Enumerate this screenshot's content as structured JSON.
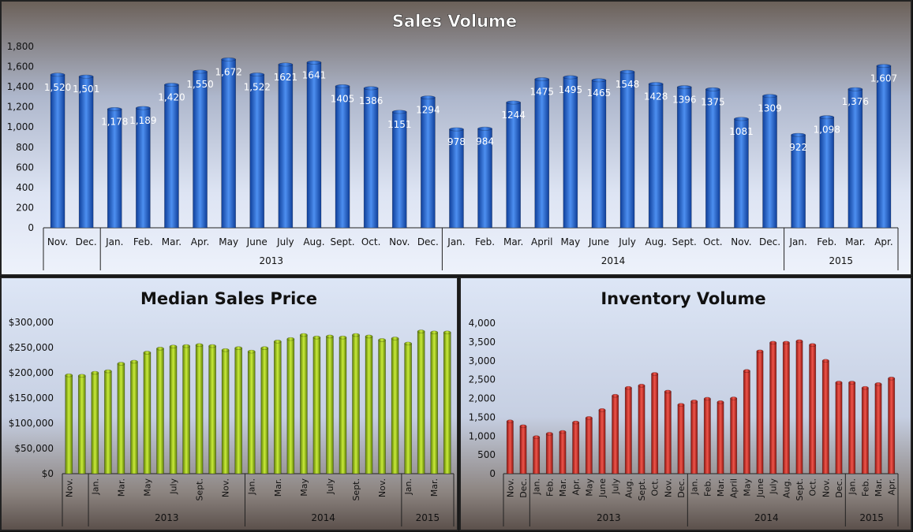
{
  "chart_data": [
    {
      "type": "bar",
      "title": "Sales Volume",
      "ylim": [
        0,
        1800
      ],
      "yticks": [
        "0",
        "200",
        "400",
        "600",
        "800",
        "1,000",
        "1,200",
        "1,400",
        "1,600",
        "1,800"
      ],
      "grid": false,
      "categories": [
        "Nov.",
        "Dec.",
        "Jan.",
        "Feb.",
        "Mar.",
        "Apr.",
        "May",
        "June",
        "July",
        "Aug.",
        "Sept.",
        "Oct.",
        "Nov.",
        "Dec.",
        "Jan.",
        "Feb.",
        "Mar.",
        "April",
        "May",
        "June",
        "July",
        "Aug.",
        "Sept.",
        "Oct.",
        "Nov.",
        "Dec.",
        "Jan.",
        "Feb.",
        "Mar.",
        "Apr."
      ],
      "values": [
        1520,
        1501,
        1178,
        1189,
        1420,
        1550,
        1672,
        1522,
        1621,
        1641,
        1405,
        1386,
        1151,
        1294,
        978,
        984,
        1244,
        1475,
        1495,
        1465,
        1548,
        1428,
        1396,
        1375,
        1081,
        1309,
        922,
        1098,
        1376,
        1607
      ],
      "data_labels": [
        "1,520",
        "1,501",
        "1,178",
        "1,189",
        "1,420",
        "1,550",
        "1,672",
        "1,522",
        "1621",
        "1641",
        "1405",
        "1386",
        "1151",
        "1294",
        "978",
        "984",
        "1244",
        "1475",
        "1495",
        "1465",
        "1548",
        "1428",
        "1396",
        "1375",
        "1081",
        "1309",
        "922",
        "1,098",
        "1,376",
        "1,607"
      ],
      "groups": [
        {
          "label": "",
          "count": 2
        },
        {
          "label": "2013",
          "count": 12
        },
        {
          "label": "2014",
          "count": 12
        },
        {
          "label": "2015",
          "count": 4
        }
      ],
      "bar_color": "#2f6fd6"
    },
    {
      "type": "bar",
      "title": "Median Sales Price",
      "ylim": [
        0,
        300000
      ],
      "yticks": [
        "$0",
        "$50,000",
        "$100,000",
        "$150,000",
        "$200,000",
        "$250,000",
        "$300,000"
      ],
      "grid": false,
      "categories": [
        "Nov.",
        "",
        "Jan.",
        "",
        "Mar.",
        "",
        "May",
        "",
        "July",
        "",
        "Sept.",
        "",
        "Nov.",
        "",
        "Jan.",
        "",
        "Mar.",
        "",
        "May",
        "",
        "July",
        "",
        "Sept.",
        "",
        "Nov.",
        "",
        "Jan.",
        "",
        "Mar.",
        ""
      ],
      "values": [
        195000,
        194000,
        200000,
        203000,
        218000,
        222000,
        240000,
        248000,
        252000,
        253000,
        255000,
        253000,
        245000,
        249000,
        242000,
        249000,
        262000,
        267000,
        275000,
        270000,
        272000,
        270000,
        275000,
        272000,
        265000,
        268000,
        258000,
        282000,
        280000,
        280000
      ],
      "groups": [
        {
          "label": "",
          "count": 2
        },
        {
          "label": "2013",
          "count": 12
        },
        {
          "label": "2014",
          "count": 12
        },
        {
          "label": "2015",
          "count": 4
        }
      ],
      "bar_color": "#9cc21d"
    },
    {
      "type": "bar",
      "title": "Inventory Volume",
      "ylim": [
        0,
        4000
      ],
      "yticks": [
        "0",
        "500",
        "1,000",
        "1,500",
        "2,000",
        "2,500",
        "3,000",
        "3,500",
        "4,000"
      ],
      "grid": false,
      "categories": [
        "Nov.",
        "Dec.",
        "Jan.",
        "Feb.",
        "Mar.",
        "Apr.",
        "May",
        "June",
        "July",
        "Aug.",
        "Sept.",
        "Oct.",
        "Nov.",
        "Dec.",
        "Jan.",
        "Feb.",
        "Mar.",
        "April",
        "May",
        "June",
        "July",
        "Aug.",
        "Sept.",
        "Oct.",
        "Nov.",
        "Dec.",
        "Jan.",
        "Feb.",
        "Mar.",
        "Apr."
      ],
      "values": [
        1390,
        1260,
        970,
        1060,
        1110,
        1360,
        1480,
        1690,
        2070,
        2280,
        2340,
        2650,
        2180,
        1830,
        1920,
        1990,
        1900,
        2000,
        2730,
        3250,
        3480,
        3480,
        3520,
        3420,
        3000,
        2420,
        2420,
        2280,
        2380,
        2530
      ],
      "groups": [
        {
          "label": "",
          "count": 2
        },
        {
          "label": "2013",
          "count": 12
        },
        {
          "label": "2014",
          "count": 12
        },
        {
          "label": "2015",
          "count": 4
        }
      ],
      "bar_color": "#d9342b"
    }
  ]
}
